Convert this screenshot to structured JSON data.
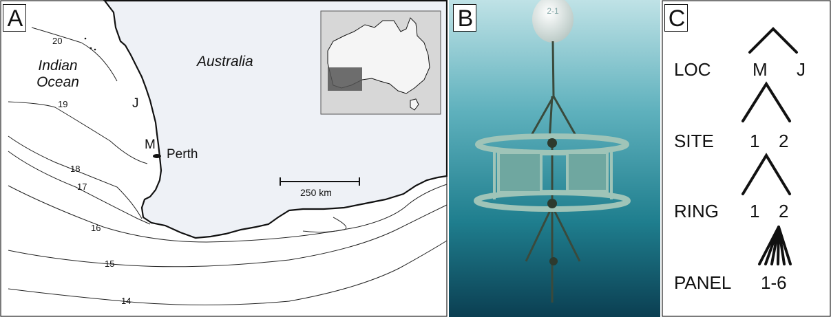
{
  "panels": {
    "a": {
      "letter": "A",
      "ocean_line1": "Indian",
      "ocean_line2": "Ocean",
      "land": "Australia",
      "city": "Perth",
      "site_j": "J",
      "site_m": "M",
      "scale": "250 km",
      "isotherms": [
        "20",
        "19",
        "18",
        "17",
        "16",
        "15",
        "14"
      ]
    },
    "b": {
      "letter": "B",
      "buoy_label": "2-1"
    },
    "c": {
      "letter": "C",
      "levels": [
        {
          "label": "LOC",
          "values": [
            "M",
            "J"
          ]
        },
        {
          "label": "SITE",
          "values": [
            "1",
            "2"
          ]
        },
        {
          "label": "RING",
          "values": [
            "1",
            "2"
          ]
        },
        {
          "label": "PANEL",
          "values": [
            "1-6"
          ]
        }
      ]
    }
  }
}
